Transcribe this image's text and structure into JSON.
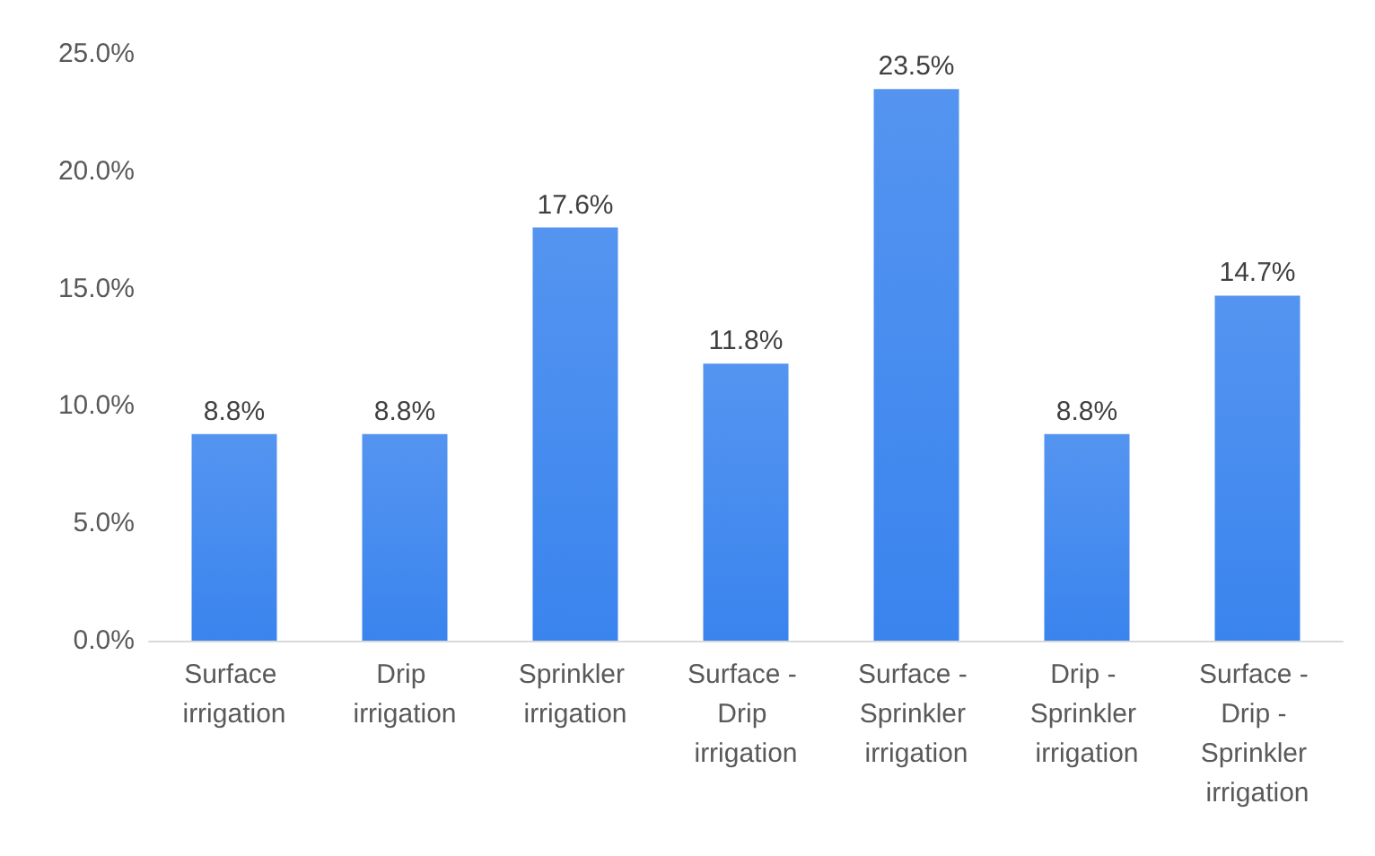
{
  "chart_data": {
    "type": "bar",
    "categories": [
      "Surface irrigation",
      "Drip irrigation",
      "Sprinkler irrigation",
      "Surface - Drip irrigation",
      "Surface - Sprinkler irrigation",
      "Drip - Sprinkler irrigation",
      "Surface - Drip - Sprinkler irrigation"
    ],
    "values": [
      8.8,
      8.8,
      17.6,
      11.8,
      23.5,
      8.8,
      14.7
    ],
    "value_labels": [
      "8.8%",
      "8.8%",
      "17.6%",
      "11.8%",
      "23.5%",
      "8.8%",
      "14.7%"
    ],
    "color": "#3a84ee",
    "ylim": [
      0,
      25
    ],
    "yticks": [
      {
        "value": 0,
        "label": "0.0%"
      },
      {
        "value": 5,
        "label": "5.0%"
      },
      {
        "value": 10,
        "label": "10.0%"
      },
      {
        "value": 15,
        "label": "15.0%"
      },
      {
        "value": 20,
        "label": "20.0%"
      },
      {
        "value": 25,
        "label": "25.0%"
      }
    ],
    "grid": false
  }
}
